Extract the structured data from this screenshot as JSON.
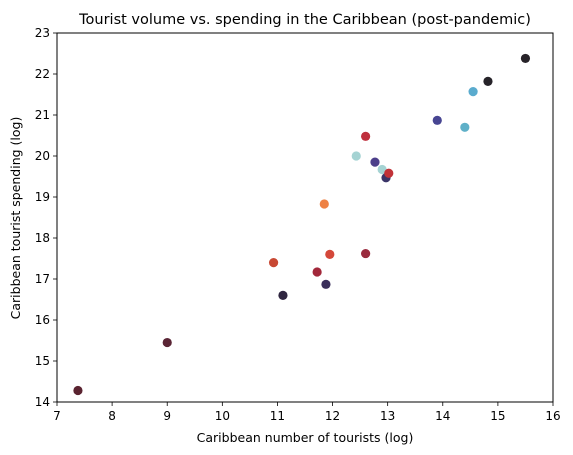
{
  "chart_data": {
    "type": "scatter",
    "title": "Tourist volume vs. spending in the Caribbean (post-pandemic)",
    "xlabel": "Caribbean number of tourists (log)",
    "ylabel": "Caribbean tourist spending (log)",
    "xlim": [
      7,
      16
    ],
    "ylim": [
      14,
      23
    ],
    "xticks": [
      7,
      8,
      9,
      10,
      11,
      12,
      13,
      14,
      15,
      16
    ],
    "yticks": [
      14,
      15,
      16,
      17,
      18,
      19,
      20,
      21,
      22,
      23
    ],
    "grid": false,
    "legend": "none",
    "points": [
      {
        "x": 7.38,
        "y": 14.28,
        "color": "#5a2330"
      },
      {
        "x": 9.0,
        "y": 15.45,
        "color": "#5a2535"
      },
      {
        "x": 10.93,
        "y": 17.4,
        "color": "#c84833"
      },
      {
        "x": 11.1,
        "y": 16.6,
        "color": "#2f2640"
      },
      {
        "x": 11.72,
        "y": 17.17,
        "color": "#a2283a"
      },
      {
        "x": 11.85,
        "y": 18.83,
        "color": "#ee8144"
      },
      {
        "x": 11.88,
        "y": 16.87,
        "color": "#3b2f5b"
      },
      {
        "x": 11.95,
        "y": 17.6,
        "color": "#d4483a"
      },
      {
        "x": 12.43,
        "y": 20.0,
        "color": "#a5d3d3"
      },
      {
        "x": 12.6,
        "y": 17.62,
        "color": "#9a2b3e"
      },
      {
        "x": 12.6,
        "y": 20.48,
        "color": "#bf303d"
      },
      {
        "x": 12.77,
        "y": 19.85,
        "color": "#4c3f8a"
      },
      {
        "x": 12.9,
        "y": 19.67,
        "color": "#a5d3d3"
      },
      {
        "x": 12.97,
        "y": 19.47,
        "color": "#3a3468"
      },
      {
        "x": 13.02,
        "y": 19.58,
        "color": "#c13238"
      },
      {
        "x": 13.9,
        "y": 20.87,
        "color": "#474592"
      },
      {
        "x": 14.4,
        "y": 20.7,
        "color": "#5fb0c8"
      },
      {
        "x": 14.55,
        "y": 21.57,
        "color": "#5aabce"
      },
      {
        "x": 14.82,
        "y": 21.82,
        "color": "#262329"
      },
      {
        "x": 15.5,
        "y": 22.38,
        "color": "#272329"
      }
    ]
  }
}
